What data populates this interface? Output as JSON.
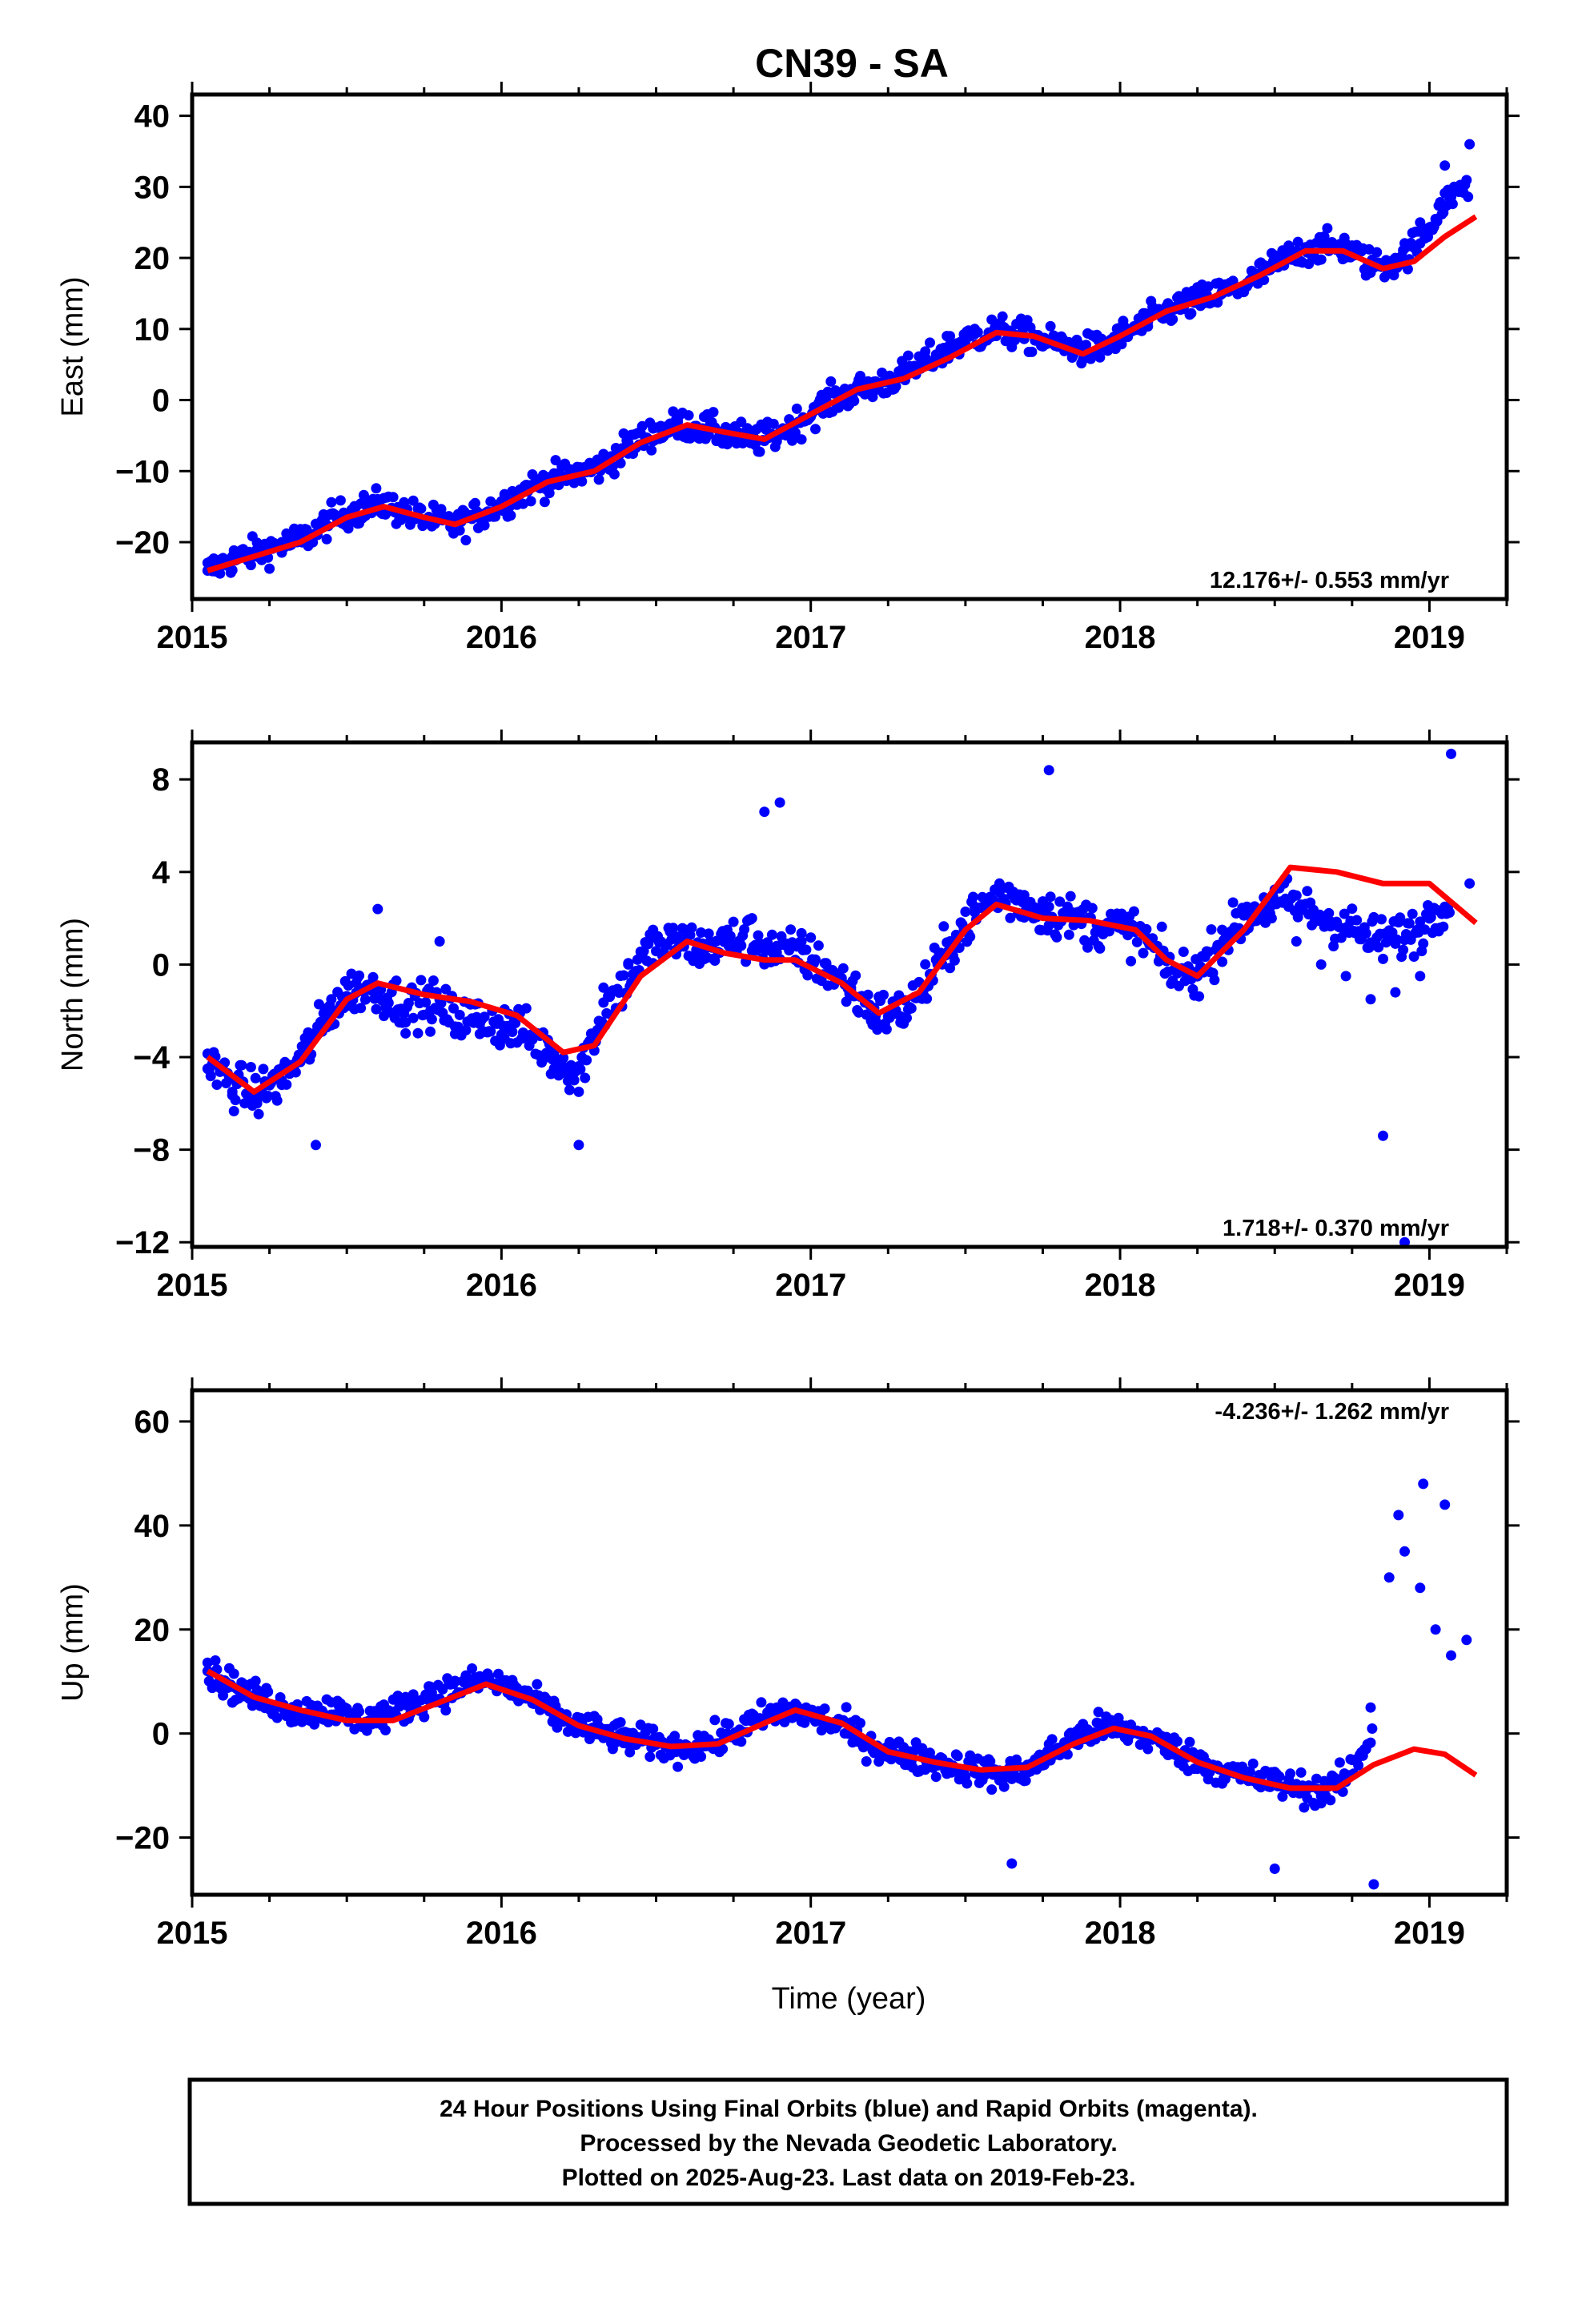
{
  "title": "CN39 - SA",
  "xlabel": "Time (year)",
  "footer": {
    "lines": [
      "24 Hour Positions Using Final Orbits (blue) and Rapid Orbits (magenta).",
      "Processed by the Nevada Geodetic Laboratory.",
      "Plotted on 2025-Aug-23. Last data on 2019-Feb-23."
    ]
  },
  "colors": {
    "points": "#0000ff",
    "fit": "#ff0000",
    "frame": "#000000"
  },
  "chart_data": [
    {
      "type": "scatter",
      "name": "east",
      "ylabel": "East (mm)",
      "xlim": [
        2015.0,
        2019.25
      ],
      "ylim": [
        -28,
        43
      ],
      "xticks": [
        2015,
        2016,
        2017,
        2018,
        2019
      ],
      "yticks": [
        -20,
        -10,
        0,
        10,
        20,
        30,
        40
      ],
      "ytick_labels": [
        "−20",
        "−10",
        "0",
        "10",
        "20",
        "30",
        "40"
      ],
      "rate_label": "12.176+/- 0.553 mm/yr",
      "rate_label_position": "bottom-right",
      "series": [
        {
          "kind": "points",
          "color": "#0000ff",
          "x": [
            2015.05,
            2015.13,
            2015.21,
            2015.29,
            2015.37,
            2015.45,
            2015.53,
            2015.61,
            2015.69,
            2015.77,
            2015.85,
            2015.93,
            2016.01,
            2016.09,
            2016.17,
            2016.25,
            2016.33,
            2016.41,
            2016.49,
            2016.57,
            2016.65,
            2016.73,
            2016.81,
            2016.89,
            2016.97,
            2017.05,
            2017.13,
            2017.21,
            2017.29,
            2017.37,
            2017.45,
            2017.53,
            2017.61,
            2017.69,
            2017.77,
            2017.85,
            2017.93,
            2018.01,
            2018.09,
            2018.17,
            2018.25,
            2018.33,
            2018.41,
            2018.49,
            2018.57,
            2018.65,
            2018.73,
            2018.81,
            2018.89,
            2018.97,
            2019.05,
            2019.13
          ],
          "y": [
            -24,
            -22,
            -21,
            -20,
            -19,
            -16,
            -15,
            -14,
            -16,
            -17,
            -18,
            -16,
            -14,
            -12,
            -11,
            -10,
            -9,
            -6,
            -4,
            -3,
            -4,
            -5,
            -6,
            -5,
            -3,
            0,
            1,
            2,
            4,
            6,
            9,
            10,
            10,
            9,
            8,
            8,
            7,
            9,
            11,
            13,
            14,
            15,
            16,
            19,
            21,
            22,
            22,
            19,
            20,
            25,
            33,
            36
          ]
        },
        {
          "kind": "line",
          "color": "#ff0000",
          "name": "fit",
          "x": [
            2015.05,
            2015.2,
            2015.35,
            2015.5,
            2015.62,
            2015.75,
            2015.85,
            2016.0,
            2016.15,
            2016.3,
            2016.45,
            2016.6,
            2016.72,
            2016.85,
            2017.0,
            2017.15,
            2017.3,
            2017.45,
            2017.6,
            2017.72,
            2017.88,
            2018.0,
            2018.15,
            2018.3,
            2018.45,
            2018.6,
            2018.72,
            2018.85,
            2018.95,
            2019.05,
            2019.15
          ],
          "y": [
            -24,
            -22,
            -20,
            -16.5,
            -15,
            -16.5,
            -17.5,
            -15,
            -11.5,
            -10,
            -6,
            -3.5,
            -4.5,
            -5.5,
            -2,
            1.5,
            3,
            6,
            9.5,
            9,
            6.5,
            9,
            12.5,
            14.5,
            17.5,
            21,
            21,
            18.5,
            19.5,
            23,
            25.8
          ]
        }
      ]
    },
    {
      "type": "scatter",
      "name": "north",
      "ylabel": "North (mm)",
      "xlim": [
        2015.0,
        2019.25
      ],
      "ylim": [
        -12.2,
        9.6
      ],
      "xticks": [
        2015,
        2016,
        2017,
        2018,
        2019
      ],
      "yticks": [
        -12,
        -8,
        -4,
        0,
        4,
        8
      ],
      "ytick_labels": [
        "−12",
        "−8",
        "−4",
        "0",
        "4",
        "8"
      ],
      "rate_label": "1.718+/- 0.370 mm/yr",
      "rate_label_position": "bottom-right",
      "series": [
        {
          "kind": "points",
          "color": "#0000ff",
          "x": [
            2015.05,
            2015.13,
            2015.21,
            2015.29,
            2015.37,
            2015.45,
            2015.53,
            2015.61,
            2015.69,
            2015.77,
            2015.85,
            2015.93,
            2016.01,
            2016.09,
            2016.17,
            2016.25,
            2016.33,
            2016.41,
            2016.49,
            2016.57,
            2016.65,
            2016.73,
            2016.81,
            2016.89,
            2016.97,
            2017.05,
            2017.13,
            2017.21,
            2017.29,
            2017.37,
            2017.45,
            2017.53,
            2017.61,
            2017.69,
            2017.77,
            2017.85,
            2017.93,
            2018.01,
            2018.09,
            2018.17,
            2018.25,
            2018.33,
            2018.41,
            2018.49,
            2018.57,
            2018.65,
            2018.73,
            2018.81,
            2018.89,
            2018.97,
            2019.05,
            2019.13,
            2015.4,
            2015.6,
            2015.8,
            2016.25,
            2016.85,
            2016.9,
            2017.77,
            2018.85,
            2018.92,
            2019.07
          ],
          "y": [
            -4.5,
            -5.5,
            -5.8,
            -5.2,
            -3.5,
            -1.5,
            -0.8,
            -1.5,
            -2.5,
            -2,
            -3,
            -3,
            -3.2,
            -3.5,
            -4.5,
            -5.5,
            -1,
            0,
            1.5,
            1.2,
            0.5,
            1.5,
            2,
            0.8,
            1,
            0,
            -1,
            -2.2,
            -2.5,
            -1,
            1,
            2.5,
            3.5,
            3,
            2.5,
            2,
            1.5,
            1.5,
            1,
            -0.8,
            -0.3,
            1.5,
            2.5,
            2,
            1,
            0,
            -0.5,
            -1.5,
            -1.2,
            -0.5,
            2.5,
            3.5,
            -7.8,
            2.4,
            1,
            -7.8,
            6.6,
            7.0,
            8.4,
            -7.4,
            -12,
            9.1
          ]
        },
        {
          "kind": "line",
          "color": "#ff0000",
          "name": "fit",
          "x": [
            2015.05,
            2015.2,
            2015.35,
            2015.5,
            2015.6,
            2015.75,
            2015.9,
            2016.05,
            2016.2,
            2016.3,
            2016.45,
            2016.6,
            2016.72,
            2016.85,
            2016.95,
            2017.1,
            2017.22,
            2017.35,
            2017.5,
            2017.6,
            2017.75,
            2017.9,
            2018.05,
            2018.15,
            2018.25,
            2018.4,
            2018.55,
            2018.7,
            2018.85,
            2019.0,
            2019.15
          ],
          "y": [
            -4,
            -5.5,
            -4.2,
            -1.5,
            -0.8,
            -1.3,
            -1.6,
            -2.2,
            -3.8,
            -3.5,
            -0.5,
            1,
            0.5,
            0.2,
            0.2,
            -0.8,
            -2.1,
            -1.2,
            1.5,
            2.6,
            2,
            1.9,
            1.5,
            0.2,
            -0.5,
            1.5,
            4.2,
            4.0,
            3.5,
            3.5,
            1.8
          ]
        }
      ]
    },
    {
      "type": "scatter",
      "name": "up",
      "ylabel": "Up (mm)",
      "xlim": [
        2015.0,
        2019.25
      ],
      "ylim": [
        -31,
        66
      ],
      "xticks": [
        2015,
        2016,
        2017,
        2018,
        2019
      ],
      "yticks": [
        -20,
        0,
        20,
        40,
        60
      ],
      "ytick_labels": [
        "−20",
        "0",
        "20",
        "40",
        "60"
      ],
      "rate_label": "-4.236+/- 1.262 mm/yr",
      "rate_label_position": "top-right",
      "series": [
        {
          "kind": "points",
          "color": "#0000ff",
          "x": [
            2015.05,
            2015.13,
            2015.21,
            2015.29,
            2015.37,
            2015.45,
            2015.53,
            2015.61,
            2015.69,
            2015.77,
            2015.85,
            2015.93,
            2016.01,
            2016.09,
            2016.17,
            2016.25,
            2016.33,
            2016.41,
            2016.49,
            2016.57,
            2016.65,
            2016.73,
            2016.81,
            2016.89,
            2016.97,
            2017.05,
            2017.13,
            2017.21,
            2017.29,
            2017.37,
            2017.45,
            2017.53,
            2017.61,
            2017.69,
            2017.77,
            2017.85,
            2017.93,
            2018.01,
            2018.09,
            2018.17,
            2018.25,
            2018.33,
            2018.41,
            2018.49,
            2018.57,
            2018.65,
            2018.73,
            2018.81,
            2018.87,
            2018.92,
            2018.97,
            2019.02,
            2019.07,
            2019.12,
            2018.9,
            2018.98,
            2019.05,
            2017.65,
            2018.5,
            2018.82
          ],
          "y": [
            12,
            9,
            7,
            5,
            4,
            6,
            3,
            4,
            7,
            9,
            10,
            11,
            10,
            7,
            3,
            1,
            0,
            -1,
            -2,
            -3,
            -2,
            0,
            3,
            5,
            4,
            2,
            0,
            -3,
            -4,
            -5,
            -6,
            -7,
            -9,
            -8,
            -4,
            0,
            2,
            1,
            -1,
            -3,
            -5,
            -7,
            -8,
            -9,
            -10,
            -12,
            -8,
            5,
            30,
            35,
            28,
            20,
            15,
            18,
            42,
            48,
            44,
            -25,
            -26,
            -29
          ]
        },
        {
          "kind": "line",
          "color": "#ff0000",
          "name": "fit",
          "x": [
            2015.05,
            2015.2,
            2015.35,
            2015.5,
            2015.65,
            2015.8,
            2015.95,
            2016.1,
            2016.25,
            2016.4,
            2016.55,
            2016.7,
            2016.85,
            2016.95,
            2017.1,
            2017.25,
            2017.4,
            2017.55,
            2017.7,
            2017.85,
            2017.98,
            2018.1,
            2018.25,
            2018.4,
            2018.55,
            2018.7,
            2018.82,
            2018.95,
            2019.05,
            2019.15
          ],
          "y": [
            12,
            7,
            4.5,
            2.5,
            2.5,
            6,
            9.5,
            6.5,
            1.5,
            -1,
            -2.5,
            -2,
            2,
            4.5,
            2,
            -3.5,
            -5.5,
            -7,
            -6.5,
            -2,
            1,
            -0.5,
            -5.5,
            -8.5,
            -10.5,
            -10.5,
            -6,
            -3,
            -4,
            -8
          ]
        }
      ]
    }
  ]
}
